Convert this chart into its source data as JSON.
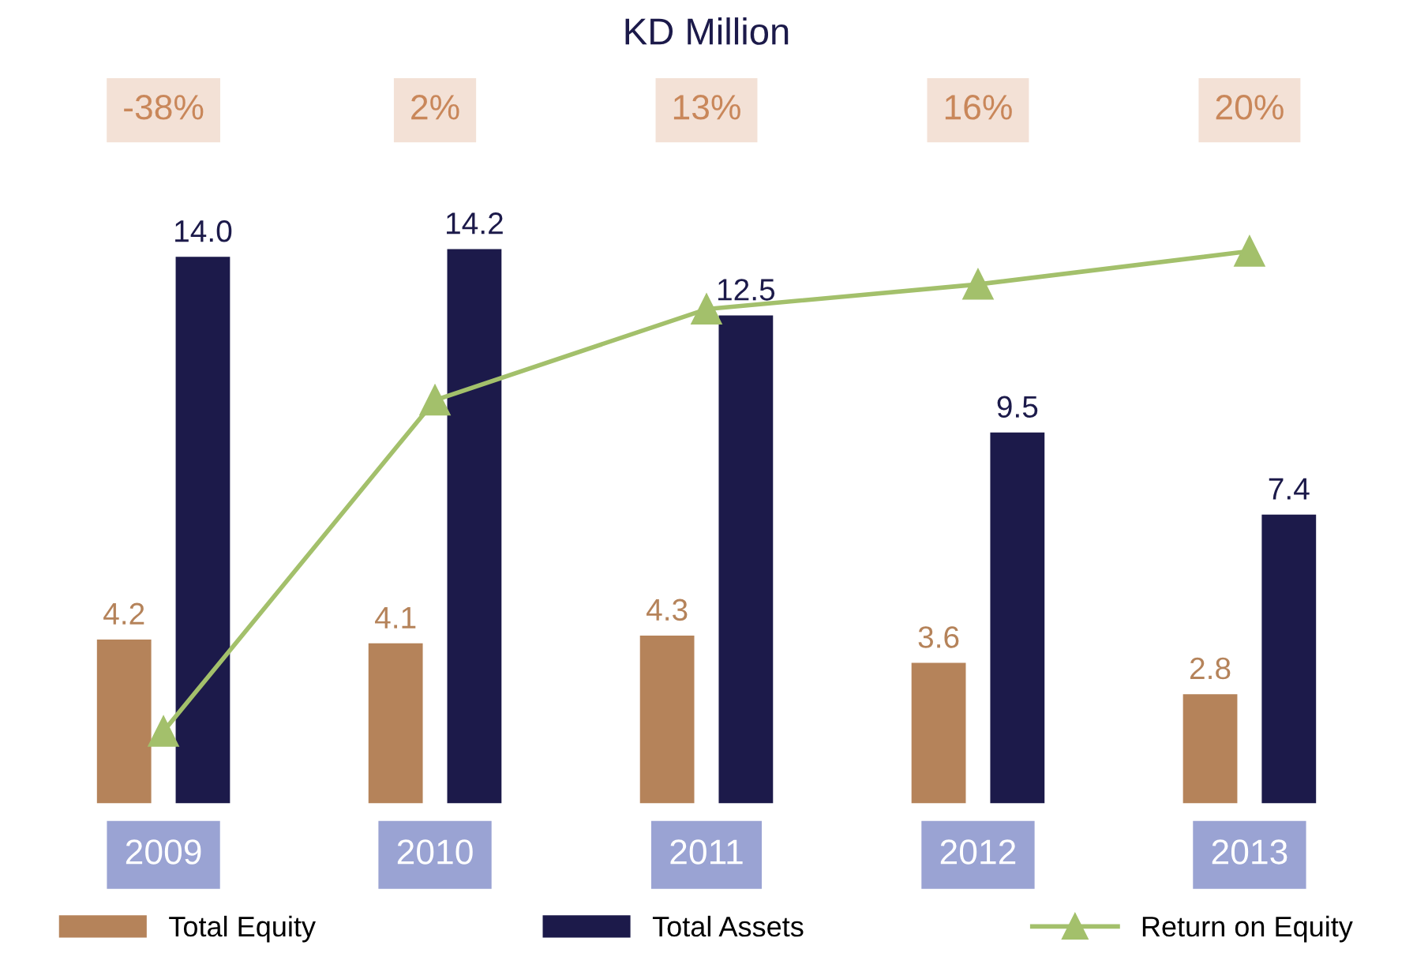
{
  "chart_data": {
    "type": "bar",
    "title": "KD Million",
    "categories": [
      "2009",
      "2010",
      "2011",
      "2012",
      "2013"
    ],
    "series": [
      {
        "name": "Total Equity",
        "color": "#b5835a",
        "values": [
          4.2,
          4.1,
          4.3,
          3.6,
          2.8
        ],
        "value_labels": [
          "4.2",
          "4.1",
          "4.3",
          "3.6",
          "2.8"
        ]
      },
      {
        "name": "Total Assets",
        "color": "#1c1a4a",
        "values": [
          14.0,
          14.2,
          12.5,
          9.5,
          7.4
        ],
        "value_labels": [
          "14.0",
          "14.2",
          "12.5",
          "9.5",
          "7.4"
        ]
      },
      {
        "name": "Return on Equity",
        "type": "line",
        "axis": "y2",
        "color": "#a3c06b",
        "marker": "triangle",
        "values": [
          -38,
          2,
          13,
          16,
          20
        ],
        "value_labels": [
          "-38%",
          "2%",
          "13%",
          "16%",
          "20%"
        ]
      }
    ],
    "legend": "bottom"
  }
}
